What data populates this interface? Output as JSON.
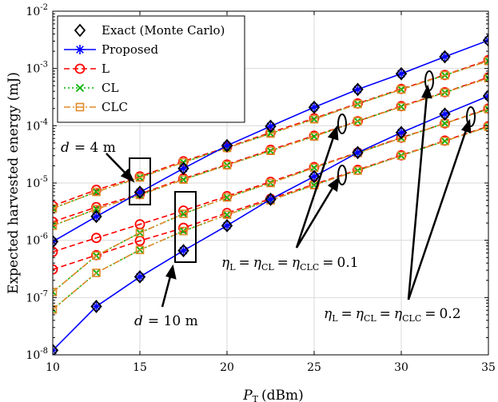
{
  "chart_data": {
    "type": "line",
    "title": "",
    "xlabel": "P_T (dBm)",
    "xlabel_main": "P",
    "xlabel_sub": "T",
    "xlabel_unit": "(dBm)",
    "ylabel": "Expected harvested energy (mJ)",
    "xlim": [
      10,
      35
    ],
    "ylim_log10": [
      -8,
      -2
    ],
    "yscale": "log",
    "grid": true,
    "x_ticks": [
      "10",
      "15",
      "20",
      "25",
      "30",
      "35"
    ],
    "y_ticks": [
      {
        "base": "10",
        "exp": "-8"
      },
      {
        "base": "10",
        "exp": "-7"
      },
      {
        "base": "10",
        "exp": "-6"
      },
      {
        "base": "10",
        "exp": "-5"
      },
      {
        "base": "10",
        "exp": "-4"
      },
      {
        "base": "10",
        "exp": "-3"
      },
      {
        "base": "10",
        "exp": "-2"
      }
    ],
    "legend": {
      "position": "top-left",
      "entries": [
        {
          "label": "Exact (Monte Carlo)",
          "color": "#000000",
          "marker": "diamond",
          "line": "none"
        },
        {
          "label": "Proposed",
          "color": "#0000ff",
          "marker": "asterisk",
          "line": "solid"
        },
        {
          "label": "L",
          "color": "#ff0000",
          "marker": "circle",
          "line": "dashed"
        },
        {
          "label": "CL",
          "color": "#00b400",
          "marker": "x",
          "line": "dotted"
        },
        {
          "label": "CLC",
          "color": "#e08a2a",
          "marker": "square",
          "line": "dashdot"
        }
      ]
    },
    "x": [
      10,
      12.5,
      15,
      17.5,
      20,
      22.5,
      25,
      27.5,
      30,
      32.5,
      35
    ],
    "series": [
      {
        "name": "Exact (Monte Carlo), d = 4 m",
        "marker": "diamond",
        "color": "#000000",
        "values": [
          9.5e-07,
          2.6e-06,
          6.9e-06,
          1.8e-05,
          4.5e-05,
          9.8e-05,
          0.00021,
          0.00043,
          0.00081,
          0.0016,
          0.0031
        ]
      },
      {
        "name": "Proposed, d = 4 m",
        "marker": "asterisk",
        "color": "#0000ff",
        "line": "solid",
        "values": [
          9.5e-07,
          2.6e-06,
          6.9e-06,
          1.8e-05,
          4.5e-05,
          9.8e-05,
          0.00021,
          0.00043,
          0.00081,
          0.0016,
          0.0031
        ]
      },
      {
        "name": "Exact (Monte Carlo), d = 10 m",
        "marker": "diamond",
        "color": "#000000",
        "values": [
          1.2e-08,
          7e-08,
          2.3e-07,
          6.6e-07,
          1.8e-06,
          5.2e-06,
          1.3e-05,
          3.4e-05,
          7.6e-05,
          0.00016,
          0.00033
        ]
      },
      {
        "name": "Proposed, d = 10 m",
        "marker": "asterisk",
        "color": "#0000ff",
        "line": "solid",
        "values": [
          1.2e-08,
          7e-08,
          2.3e-07,
          6.6e-07,
          1.8e-06,
          5.2e-06,
          1.3e-05,
          3.4e-05,
          7.6e-05,
          0.00016,
          0.00033
        ]
      },
      {
        "name": "L, eta = 0.2, d = 4 m",
        "marker": "circle",
        "color": "#ff0000",
        "line": "dashed",
        "values": [
          4e-06,
          7.6e-06,
          1.3e-05,
          2.4e-05,
          4.2e-05,
          7.6e-05,
          0.000135,
          0.000245,
          0.00044,
          0.00077,
          0.0014
        ]
      },
      {
        "name": "CL, eta = 0.2, d = 4 m",
        "marker": "x",
        "color": "#00b400",
        "line": "dotted",
        "values": [
          3.6e-06,
          7e-06,
          1.25e-05,
          2.3e-05,
          4.1e-05,
          7.3e-05,
          0.00013,
          0.00024,
          0.00043,
          0.00076,
          0.00135
        ]
      },
      {
        "name": "CLC, eta = 0.2, d = 4 m",
        "marker": "square",
        "color": "#e08a2a",
        "line": "dashdot",
        "values": [
          3.6e-06,
          7e-06,
          1.25e-05,
          2.3e-05,
          4.1e-05,
          7.3e-05,
          0.00013,
          0.00024,
          0.00043,
          0.00076,
          0.00135
        ]
      },
      {
        "name": "L, eta = 0.1, d = 4 m",
        "marker": "circle",
        "color": "#ff0000",
        "line": "dashed",
        "values": [
          2.1e-06,
          3.8e-06,
          6.4e-06,
          1.2e-05,
          2.1e-05,
          3.8e-05,
          6.7e-05,
          0.00012,
          0.00022,
          0.000385,
          0.0007
        ]
      },
      {
        "name": "CL, eta = 0.1, d = 4 m",
        "marker": "x",
        "color": "#00b400",
        "line": "dotted",
        "values": [
          1.8e-06,
          3.5e-06,
          6.2e-06,
          1.15e-05,
          2.05e-05,
          3.65e-05,
          6.5e-05,
          0.00012,
          0.000215,
          0.00038,
          0.00068
        ]
      },
      {
        "name": "CLC, eta = 0.1, d = 4 m",
        "marker": "square",
        "color": "#e08a2a",
        "line": "dashdot",
        "values": [
          1.8e-06,
          3.5e-06,
          6.2e-06,
          1.15e-05,
          2.05e-05,
          3.65e-05,
          6.5e-05,
          0.00012,
          0.000215,
          0.00038,
          0.00068
        ]
      },
      {
        "name": "L, eta = 0.2, d = 10 m",
        "marker": "circle",
        "color": "#ff0000",
        "line": "dashed",
        "values": [
          6.3e-07,
          1.1e-06,
          1.9e-06,
          3.3e-06,
          5.9e-06,
          1.05e-05,
          1.9e-05,
          3.4e-05,
          6.2e-05,
          0.00011,
          0.0002
        ]
      },
      {
        "name": "CL, eta = 0.2, d = 10 m",
        "marker": "x",
        "color": "#00b400",
        "line": "dotted",
        "values": [
          1.25e-07,
          5.4e-07,
          1.35e-06,
          2.9e-06,
          5.6e-06,
          1e-05,
          1.85e-05,
          3.35e-05,
          6.1e-05,
          0.00011,
          0.000195
        ]
      },
      {
        "name": "CLC, eta = 0.2, d = 10 m",
        "marker": "square",
        "color": "#e08a2a",
        "line": "dashdot",
        "values": [
          1.25e-07,
          5.4e-07,
          1.35e-06,
          2.9e-06,
          5.6e-06,
          1e-05,
          1.85e-05,
          3.35e-05,
          6.1e-05,
          0.00011,
          0.000195
        ]
      },
      {
        "name": "L, eta = 0.1, d = 10 m",
        "marker": "circle",
        "color": "#ff0000",
        "line": "dashed",
        "values": [
          3.1e-07,
          5.5e-07,
          9.8e-07,
          1.65e-06,
          3e-06,
          5.3e-06,
          9.5e-06,
          1.7e-05,
          3.05e-05,
          5.5e-05,
          9.8e-05
        ]
      },
      {
        "name": "CL, eta = 0.1, d = 10 m",
        "marker": "x",
        "color": "#00b400",
        "line": "dotted",
        "values": [
          6.2e-08,
          2.7e-07,
          6.8e-07,
          1.45e-06,
          2.8e-06,
          5e-06,
          9.2e-06,
          1.65e-05,
          3e-05,
          5.4e-05,
          9.6e-05
        ]
      },
      {
        "name": "CLC, eta = 0.1, d = 10 m",
        "marker": "square",
        "color": "#e08a2a",
        "line": "dashdot",
        "values": [
          6.2e-08,
          2.7e-07,
          6.8e-07,
          1.45e-06,
          2.8e-06,
          5e-06,
          9.2e-06,
          1.65e-05,
          3e-05,
          5.4e-05,
          9.6e-05
        ]
      }
    ],
    "annotations": {
      "d4": {
        "italic": "d",
        "text": "= 4 m"
      },
      "d10": {
        "italic": "d",
        "text": "= 10 m"
      },
      "eta01": {
        "eta": "η",
        "sub_L": "L",
        "sub_CL": "CL",
        "sub_CLC": "CLC",
        "value": "0.1"
      },
      "eta02": {
        "eta": "η",
        "sub_L": "L",
        "sub_CL": "CL",
        "sub_CLC": "CLC",
        "value": "0.2"
      }
    }
  }
}
